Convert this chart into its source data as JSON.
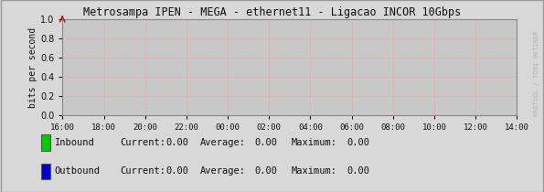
{
  "title": "Metrosampa IPEN - MEGA - ethernet11 - Ligacao INCOR 10Gbps",
  "ylabel": "bits per second",
  "x_tick_labels": [
    "16:00",
    "18:00",
    "20:00",
    "22:00",
    "00:00",
    "02:00",
    "04:00",
    "06:00",
    "08:00",
    "10:00",
    "12:00",
    "14:00"
  ],
  "ylim": [
    0,
    1.0
  ],
  "yticks": [
    0.0,
    0.2,
    0.4,
    0.6,
    0.8,
    1.0
  ],
  "bg_color": "#c8c8c8",
  "plot_bg_color": "#c8c8c8",
  "outer_bg_color": "#d8d8d8",
  "grid_color": "#ff9999",
  "border_color": "#888888",
  "arrow_color": "#cc0000",
  "title_color": "#111111",
  "font_color": "#111111",
  "inbound_color": "#00cc00",
  "outbound_color": "#0000cc",
  "legend_inbound": "Inbound",
  "legend_outbound": "Outbound",
  "legend_current_label": "Current:",
  "legend_average_label": "Average:",
  "legend_maximum_label": "Maximum:",
  "legend_current_val": "0.00",
  "legend_average_val": "0.00",
  "legend_maximum_val": "0.00",
  "watermark": "RRDTOOL / TOBI OETIKER",
  "figsize": [
    5.95,
    2.1
  ],
  "dpi": 100
}
